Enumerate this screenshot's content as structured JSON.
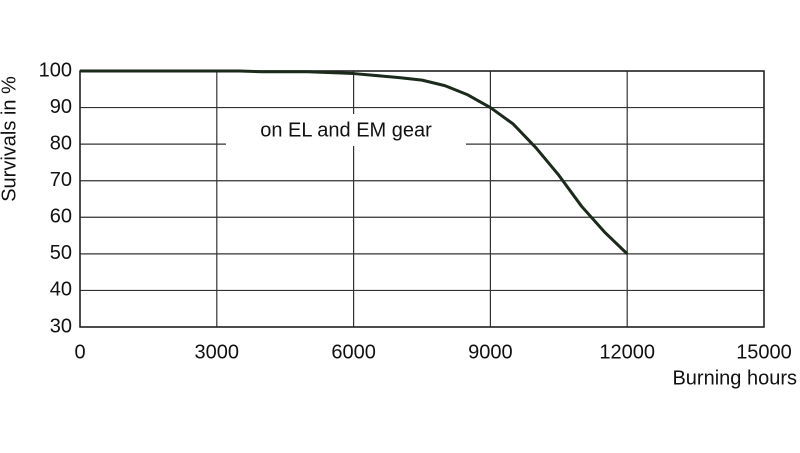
{
  "chart_data": {
    "type": "line",
    "x_label": "Burning hours",
    "y_label": "Survivals in %",
    "annotation": "on EL and EM gear",
    "x": [
      0,
      3500,
      4000,
      5000,
      6000,
      7000,
      7500,
      8000,
      8500,
      9000,
      9500,
      10000,
      10500,
      11000,
      11500,
      12000
    ],
    "series": [
      {
        "name": "survivals",
        "color": "#1b2a1b",
        "values": [
          100,
          100,
          99.8,
          99.8,
          99.3,
          98.2,
          97.5,
          96,
          93.5,
          90,
          85.5,
          79,
          71.5,
          63,
          56,
          50
        ]
      }
    ],
    "xlim": [
      0,
      15000
    ],
    "xticks": [
      0,
      3000,
      6000,
      9000,
      12000,
      15000
    ],
    "ylim": [
      30,
      100
    ],
    "yticks": [
      30,
      40,
      50,
      60,
      70,
      80,
      90,
      100
    ],
    "grid": true
  }
}
